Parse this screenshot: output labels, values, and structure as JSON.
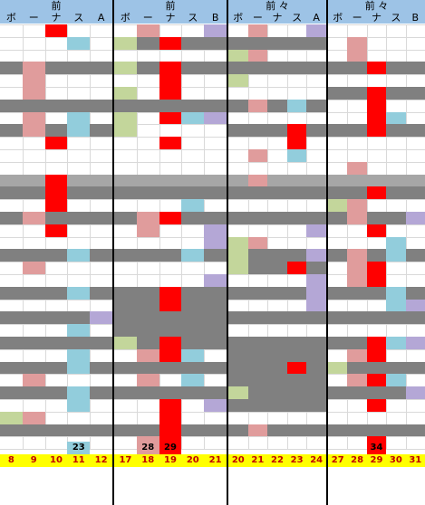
{
  "panels": [
    {
      "top_label": "前",
      "bottom_labels": [
        "ボ",
        "ー",
        "ナ",
        "ス",
        "A"
      ]
    },
    {
      "top_label": "前",
      "bottom_labels": [
        "ボ",
        "ー",
        "ナ",
        "ス",
        "B"
      ]
    },
    {
      "top_label": "前 々",
      "bottom_labels": [
        "ボ",
        "ー",
        "ナ",
        "ス",
        "A"
      ]
    },
    {
      "top_label": "前 々",
      "bottom_labels": [
        "ボ",
        "ー",
        "ナ",
        "ス",
        "B"
      ]
    }
  ],
  "footer_numbers": [
    "8",
    "9",
    "10",
    "11",
    "12",
    "17",
    "18",
    "19",
    "20",
    "21",
    "20",
    "21",
    "22",
    "23",
    "24",
    "27",
    "28",
    "29",
    "30",
    "31"
  ],
  "inline_numbers": [
    "23",
    "28",
    "29",
    "34"
  ],
  "colors": {
    "header": "#9dc3e6",
    "red": "#ff0000",
    "pink": "#e09c9c",
    "light_blue": "#92cddc",
    "purple": "#b4a7d6",
    "green": "#c3d69b",
    "gray": "#808080",
    "light_gray": "#a6a6a6",
    "footer": "#ffff00",
    "footer_text": "#c00000"
  }
}
